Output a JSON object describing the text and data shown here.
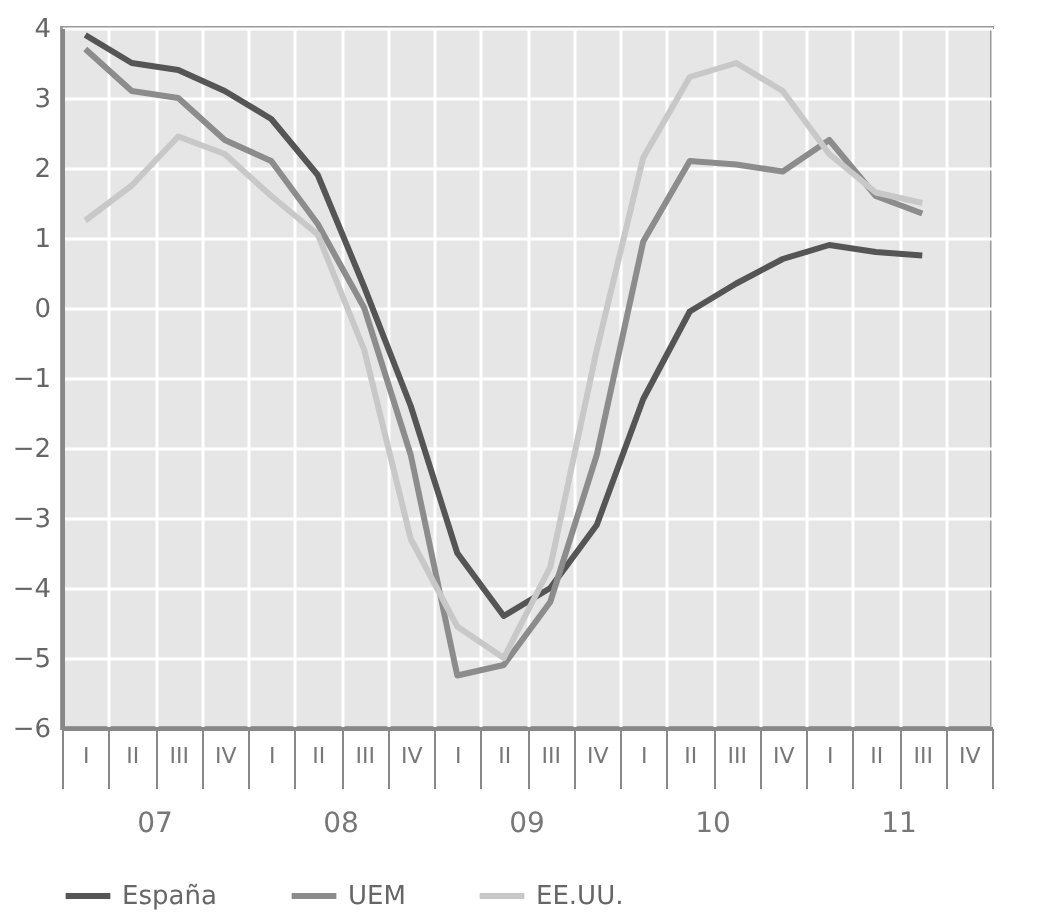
{
  "chart_data": {
    "type": "line",
    "categories": [
      "I",
      "II",
      "III",
      "IV",
      "I",
      "II",
      "III",
      "IV",
      "I",
      "II",
      "III",
      "IV",
      "I",
      "II",
      "III",
      "IV",
      "I",
      "II",
      "III",
      "IV"
    ],
    "series": [
      {
        "name": "España",
        "color": "#555555",
        "values": [
          3.9,
          3.5,
          3.4,
          3.1,
          2.7,
          1.9,
          0.3,
          -1.4,
          -3.5,
          -4.4,
          -4.0,
          -3.1,
          -1.3,
          -0.05,
          0.35,
          0.7,
          0.9,
          0.8,
          0.75,
          null
        ]
      },
      {
        "name": "UEM",
        "color": "#8c8c8c",
        "values": [
          3.7,
          3.1,
          3.0,
          2.4,
          2.1,
          1.2,
          0.0,
          -2.1,
          -5.25,
          -5.1,
          -4.2,
          -2.1,
          0.95,
          2.1,
          2.05,
          1.95,
          2.4,
          1.6,
          1.35,
          null
        ]
      },
      {
        "name": "EE.UU.",
        "color": "#c8c8c8",
        "values": [
          1.25,
          1.75,
          2.45,
          2.2,
          1.6,
          1.05,
          -0.6,
          -3.3,
          -4.55,
          -5.0,
          -3.7,
          -0.6,
          2.15,
          3.3,
          3.5,
          3.1,
          2.2,
          1.65,
          1.5,
          null
        ]
      }
    ],
    "annotations": [
      "07",
      "08",
      "09",
      "10",
      "11"
    ],
    "ylim": [
      -6,
      4
    ],
    "yticks": [
      -6,
      -5,
      -4,
      -3,
      -2,
      -1,
      0,
      1,
      2,
      3,
      4
    ],
    "grid": true,
    "legend": "bottom",
    "marker": "none",
    "line_style": "solid"
  }
}
